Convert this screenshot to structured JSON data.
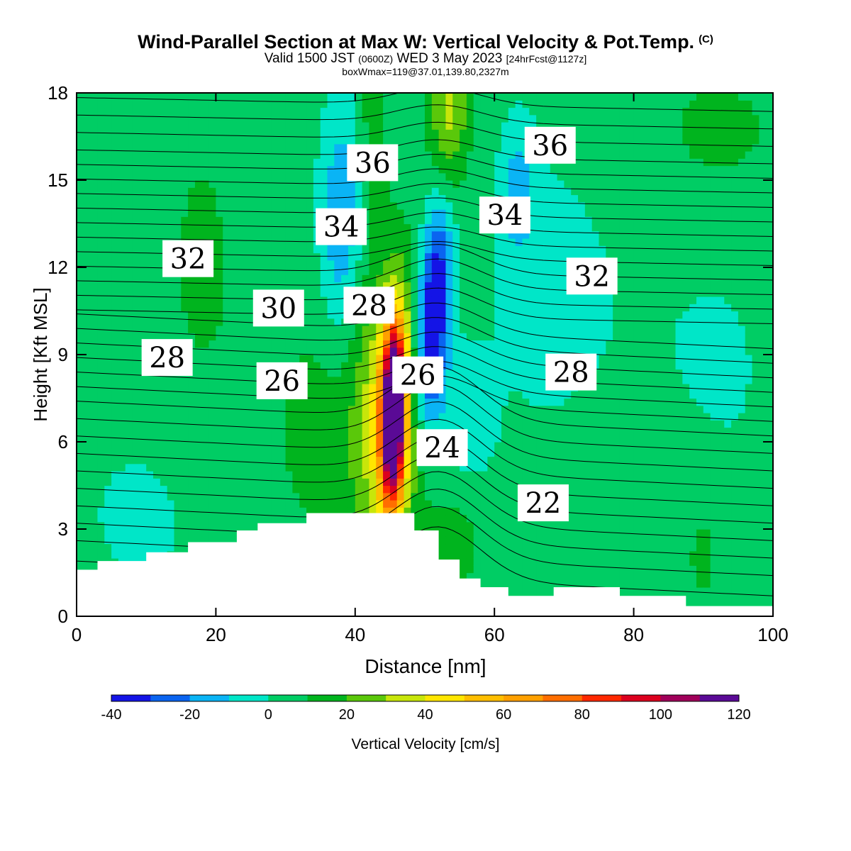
{
  "header": {
    "title": "Wind-Parallel Section at Max W: Vertical Velocity & Pot.Temp.",
    "title_mark": "(C)",
    "valid_prefix": "Valid 1500 JST",
    "valid_zulu": "(0600Z)",
    "valid_date": "WED 3 May 2023",
    "forecast": "[24hrFcst@1127z]",
    "boxmax": "boxWmax=119@37.01,139.80,2327m"
  },
  "colors": {
    "palette": [
      "#1414e6",
      "#0a64f0",
      "#0ab4f5",
      "#00e6c8",
      "#00cd64",
      "#00b41e",
      "#5ac80a",
      "#c8e60a",
      "#ffe600",
      "#ffbe00",
      "#ffa000",
      "#ff6e00",
      "#ff2800",
      "#dc001e",
      "#a0005a",
      "#5a0a96"
    ],
    "terrain": "#ffffff",
    "contour": "#000000"
  },
  "chart_data": {
    "type": "heatmap",
    "xlabel": "Distance [nm]",
    "ylabel": "Height [Kft MSL]",
    "xlim": [
      0,
      100
    ],
    "ylim": [
      0,
      18
    ],
    "xticks": [
      0,
      20,
      40,
      60,
      80,
      100
    ],
    "yticks": [
      0,
      3,
      6,
      9,
      12,
      15,
      18
    ],
    "colorbar": {
      "label": "Vertical Velocity [cm/s]",
      "levels": [
        -40,
        -30,
        -20,
        -10,
        0,
        10,
        20,
        30,
        40,
        50,
        60,
        70,
        80,
        90,
        100,
        110,
        120
      ],
      "tick_labels": [
        -40,
        -20,
        0,
        20,
        40,
        60,
        80,
        100,
        120
      ]
    },
    "max_updraft": {
      "x": 45.5,
      "y": 7.0,
      "value_cm_s": 119
    },
    "max_downdraft": {
      "x": 51,
      "y": 10.5,
      "value_cm_s": -40
    },
    "terrain_height_kft": [
      [
        0,
        1.6
      ],
      [
        3,
        1.9
      ],
      [
        10,
        2.2
      ],
      [
        16,
        2.55
      ],
      [
        23,
        2.95
      ],
      [
        26,
        3.2
      ],
      [
        33,
        3.55
      ],
      [
        48.5,
        2.95
      ],
      [
        52,
        1.95
      ],
      [
        55,
        1.3
      ],
      [
        58,
        1.0
      ],
      [
        62,
        0.7
      ],
      [
        68.5,
        1.0
      ],
      [
        78,
        0.7
      ],
      [
        87.5,
        0.35
      ],
      [
        100,
        0.35
      ]
    ],
    "theta_contour_labels": [
      {
        "text": "36",
        "x": 42.5,
        "y": 15.6
      },
      {
        "text": "36",
        "x": 68,
        "y": 16.2
      },
      {
        "text": "34",
        "x": 38,
        "y": 13.4
      },
      {
        "text": "34",
        "x": 61.5,
        "y": 13.8
      },
      {
        "text": "32",
        "x": 16,
        "y": 12.3
      },
      {
        "text": "32",
        "x": 74,
        "y": 11.7
      },
      {
        "text": "30",
        "x": 29,
        "y": 10.6
      },
      {
        "text": "28",
        "x": 42,
        "y": 10.7
      },
      {
        "text": "28",
        "x": 13,
        "y": 8.9
      },
      {
        "text": "28",
        "x": 71,
        "y": 8.4
      },
      {
        "text": "26",
        "x": 29.5,
        "y": 8.1
      },
      {
        "text": "26",
        "x": 49,
        "y": 8.3
      },
      {
        "text": "24",
        "x": 52.5,
        "y": 5.8
      },
      {
        "text": "22",
        "x": 67,
        "y": 3.9
      }
    ]
  }
}
